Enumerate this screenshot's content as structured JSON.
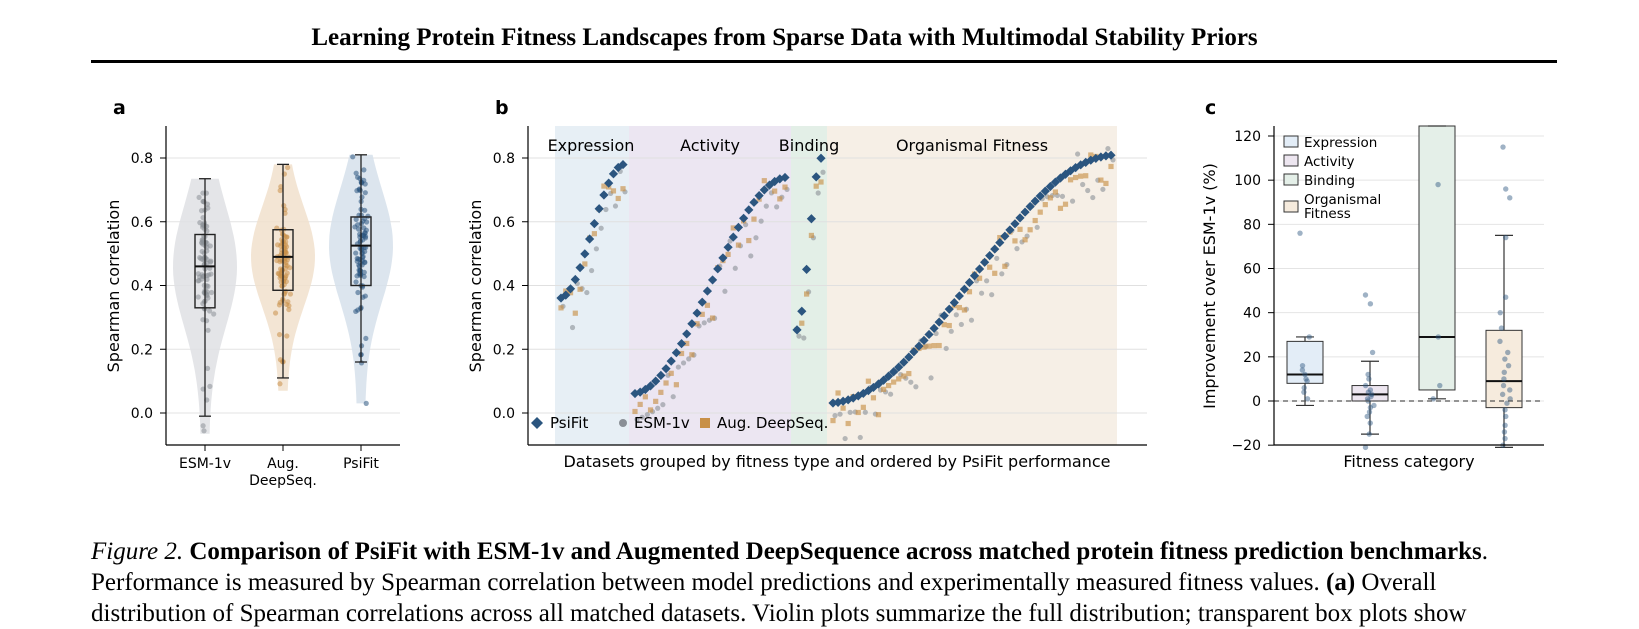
{
  "header": {
    "running_title": "Learning Protein Fitness Landscapes from Sparse Data with Multimodal Stability Priors"
  },
  "caption": {
    "lead": "Figure 2.",
    "title": "Comparison of PsiFit with ESM-1v and Augmented DeepSequence across matched protein fitness prediction benchmarks",
    "line2_a": "Performance is measured by Spearman correlation between model predictions and experimentally measured fitness values.",
    "line2_b": "(a)",
    "line2_c": "Overall",
    "line3": "distribution of Spearman correlations across all matched datasets. Violin plots summarize the full distribution; transparent box plots show"
  },
  "colors": {
    "psifit": "#2b557f",
    "esm": "#8a8f96",
    "deepseq": "#c89048",
    "bg_expression": "#e7eff5",
    "bg_activity": "#ece6f2",
    "bg_binding": "#e3efe7",
    "bg_organismal": "#f6efe6"
  },
  "chart_data": [
    {
      "panel_label": "a",
      "type": "violin",
      "ylabel": "Spearman correlation",
      "ylim": [
        -0.07,
        0.9
      ],
      "yticks": [
        "0.0",
        "0.2",
        "0.4",
        "0.6",
        "0.8"
      ],
      "categories": [
        "ESM-1v",
        "Aug.\nDeepSeq.",
        "PsiFit"
      ],
      "category_lines": [
        [
          "ESM-1v"
        ],
        [
          "Aug.",
          "DeepSeq."
        ],
        [
          "PsiFit"
        ]
      ],
      "boxes": [
        {
          "name": "ESM-1v",
          "whisker_low": -0.01,
          "q1": 0.33,
          "median": 0.46,
          "q3": 0.56,
          "whisker_high": 0.735,
          "min": -0.065,
          "max": 0.735
        },
        {
          "name": "Aug. DeepSeq.",
          "whisker_low": 0.11,
          "q1": 0.385,
          "median": 0.49,
          "q3": 0.575,
          "whisker_high": 0.78,
          "min": 0.07,
          "max": 0.78
        },
        {
          "name": "PsiFit",
          "whisker_low": 0.16,
          "q1": 0.4,
          "median": 0.525,
          "q3": 0.615,
          "whisker_high": 0.81,
          "min": 0.03,
          "max": 0.81
        }
      ],
      "grid": true
    },
    {
      "panel_label": "b",
      "type": "scatter",
      "xlabel": "Datasets grouped by fitness type and ordered by PsiFit performance",
      "ylabel": "Spearman correlation",
      "ylim": [
        -0.1,
        0.9
      ],
      "yticks": [
        "0.0",
        "0.2",
        "0.4",
        "0.6",
        "0.8"
      ],
      "groups": [
        {
          "name": "Expression",
          "count": 14,
          "psifit_range": [
            0.36,
            0.78
          ]
        },
        {
          "name": "Activity",
          "count": 30,
          "psifit_range": [
            0.06,
            0.74
          ]
        },
        {
          "name": "Binding",
          "count": 6,
          "psifit_range": [
            0.26,
            0.8
          ]
        },
        {
          "name": "Organismal Fitness",
          "count": 56,
          "psifit_range": [
            0.03,
            0.81
          ]
        }
      ],
      "legend": [
        "PsiFit",
        "ESM-1v",
        "Aug. DeepSeq."
      ],
      "legend_position": "bottom-left",
      "grid": true
    },
    {
      "panel_label": "c",
      "type": "box",
      "xlabel": "Fitness category",
      "ylabel": "Improvement over ESM-1v (%)",
      "ylim": [
        -30,
        125
      ],
      "yticks": [
        "−20",
        "0",
        "20",
        "40",
        "60",
        "80",
        "100",
        "120"
      ],
      "reference_line": 0,
      "legend": [
        "Expression",
        "Activity",
        "Binding",
        "Organismal\nFitness"
      ],
      "legend_lines": [
        [
          "Expression"
        ],
        [
          "Activity"
        ],
        [
          "Binding"
        ],
        [
          "Organismal",
          "Fitness"
        ]
      ],
      "legend_position": "top-left",
      "series": [
        {
          "name": "Expression",
          "whisker_low": -2,
          "q1": 8,
          "median": 12,
          "q3": 27,
          "whisker_high": 29,
          "points": [
            76,
            29,
            16,
            14,
            12,
            10,
            9,
            6,
            4,
            1
          ]
        },
        {
          "name": "Activity",
          "whisker_low": -15,
          "q1": 0,
          "median": 3,
          "q3": 7,
          "whisker_high": 18,
          "points": [
            48,
            44,
            22,
            12,
            10,
            7,
            5,
            4,
            3,
            2,
            1,
            0,
            -2,
            -3,
            -5,
            -7,
            -10,
            -15,
            -21
          ]
        },
        {
          "name": "Binding",
          "whisker_low": 1,
          "q1": 5,
          "median": 29,
          "q3": 125,
          "whisker_high": 125,
          "points": [
            98,
            29,
            7,
            1
          ]
        },
        {
          "name": "Organismal\nFitness",
          "whisker_low": -21,
          "q1": -3,
          "median": 9,
          "q3": 32,
          "whisker_high": 75,
          "points": [
            115,
            96,
            92,
            74,
            47,
            40,
            33,
            27,
            22,
            19,
            16,
            13,
            10,
            7,
            5,
            3,
            1,
            -1,
            -4,
            -7,
            -11,
            -14,
            -17,
            -20
          ]
        }
      ],
      "grid": true
    }
  ]
}
